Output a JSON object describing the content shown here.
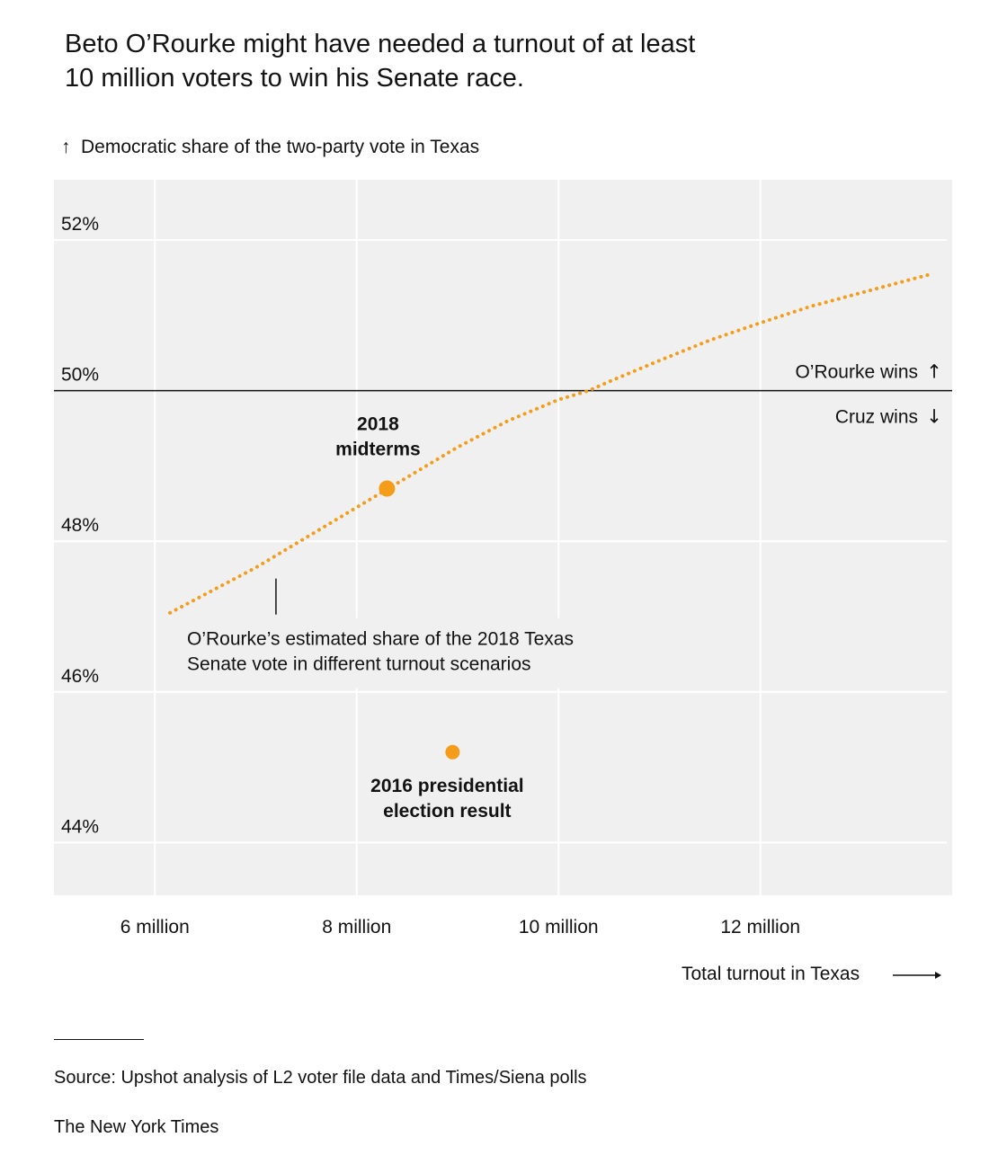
{
  "header": {
    "title_line1": "Beto O’Rourke might have needed a turnout of at least",
    "title_line2": "10 million voters to win his Senate race."
  },
  "footer": {
    "source": "Source: Upshot analysis of L2 voter file data and Times/Siena polls",
    "credit": "The New York Times"
  },
  "colors": {
    "accent": "#f59c1a",
    "panel": "#f0f0f0",
    "grid": "#ffffff",
    "threshold": "#121212"
  },
  "chart_data": {
    "type": "line",
    "ylabel": "Democratic share of the two-party vote in Texas",
    "xlabel": "Total turnout in Texas",
    "xlim": [
      5.0,
      13.9
    ],
    "ylim": [
      43.3,
      52.8
    ],
    "x_ticks": [
      6,
      8,
      10,
      12
    ],
    "x_tick_labels": [
      "6 million",
      "8 million",
      "10 million",
      "12 million"
    ],
    "y_ticks": [
      44,
      46,
      48,
      50,
      52
    ],
    "y_tick_labels": [
      "44%",
      "46%",
      "48%",
      "50%",
      "52%"
    ],
    "grid": true,
    "series": [
      {
        "name": "O’Rourke’s estimated share of the 2018 Texas Senate vote in different turnout scenarios",
        "style": "dotted",
        "x": [
          6.15,
          7.0,
          7.5,
          8.0,
          8.5,
          9.0,
          9.5,
          10.0,
          10.3,
          10.5,
          11.0,
          11.5,
          12.0,
          12.5,
          13.0,
          13.5,
          13.7
        ],
        "y": [
          47.05,
          47.65,
          48.05,
          48.45,
          48.85,
          49.25,
          49.6,
          49.88,
          50.0,
          50.12,
          50.4,
          50.67,
          50.9,
          51.12,
          51.3,
          51.48,
          51.55
        ]
      }
    ],
    "points": [
      {
        "label_line1": "2018",
        "label_line2": "midterms",
        "x": 8.3,
        "y": 48.7,
        "size": "large"
      },
      {
        "label_line1": "2016 presidential",
        "label_line2": "election result",
        "x": 8.95,
        "y": 45.2,
        "size": "small"
      }
    ],
    "threshold": {
      "y": 50,
      "above_label": "O’Rourke wins",
      "below_label": "Cruz wins"
    },
    "annotation": {
      "line1": "O’Rourke’s estimated share of the 2018 Texas",
      "line2": "Senate vote in different turnout scenarios",
      "x": 7.2,
      "y": 47.6
    }
  }
}
